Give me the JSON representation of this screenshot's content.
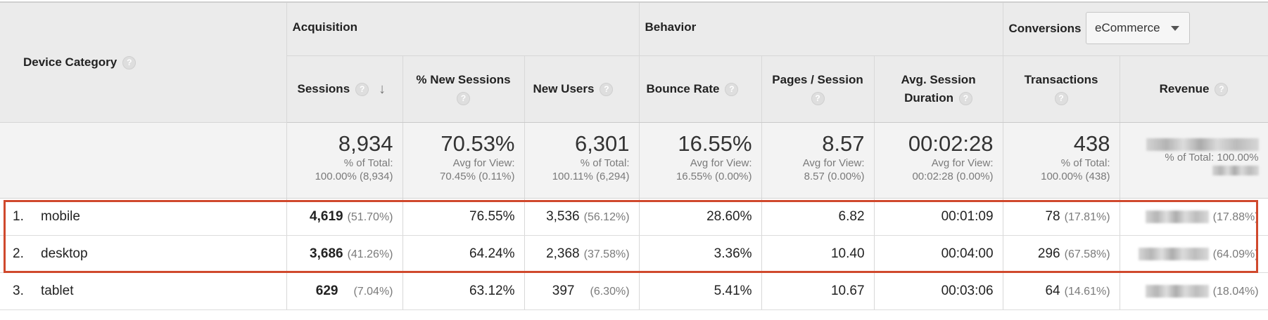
{
  "header": {
    "dimension_label": "Device Category",
    "groups": {
      "acquisition": "Acquisition",
      "behavior": "Behavior",
      "conversions": "Conversions"
    },
    "conversions_dropdown": {
      "selected": "eCommerce"
    },
    "metrics": {
      "sessions": "Sessions",
      "new_sessions_1": "% New Sessions",
      "new_users": "New Users",
      "bounce_rate": "Bounce Rate",
      "pages_session": "Pages / Session",
      "avg_duration_1": "Avg. Session",
      "avg_duration_2": "Duration",
      "transactions": "Transactions",
      "revenue": "Revenue"
    }
  },
  "summary": {
    "sessions": {
      "value": "8,934",
      "sub1": "% of Total:",
      "sub2": "100.00% (8,934)"
    },
    "new_sessions": {
      "value": "70.53%",
      "sub1": "Avg for View:",
      "sub2": "70.45% (0.11%)"
    },
    "new_users": {
      "value": "6,301",
      "sub1": "% of Total:",
      "sub2": "100.11% (6,294)"
    },
    "bounce_rate": {
      "value": "16.55%",
      "sub1": "Avg for View:",
      "sub2": "16.55% (0.00%)"
    },
    "pages_session": {
      "value": "8.57",
      "sub1": "Avg for View:",
      "sub2": "8.57 (0.00%)"
    },
    "avg_duration": {
      "value": "00:02:28",
      "sub1": "Avg for View:",
      "sub2": "00:02:28 (0.00%)"
    },
    "transactions": {
      "value": "438",
      "sub1": "% of Total:",
      "sub2": "100.00% (438)"
    },
    "revenue": {
      "sub1": "% of Total: 100.00%"
    }
  },
  "rows": [
    {
      "index": "1.",
      "name": "mobile",
      "sessions": "4,619",
      "sessions_pct": "(51.70%)",
      "new_sessions": "76.55%",
      "new_users": "3,536",
      "new_users_pct": "(56.12%)",
      "bounce_rate": "28.60%",
      "pages_session": "6.82",
      "avg_duration": "00:01:09",
      "transactions": "78",
      "transactions_pct": "(17.81%)",
      "revenue_pct": "(17.88%)"
    },
    {
      "index": "2.",
      "name": "desktop",
      "sessions": "3,686",
      "sessions_pct": "(41.26%)",
      "new_sessions": "64.24%",
      "new_users": "2,368",
      "new_users_pct": "(37.58%)",
      "bounce_rate": "3.36%",
      "pages_session": "10.40",
      "avg_duration": "00:04:00",
      "transactions": "296",
      "transactions_pct": "(67.58%)",
      "revenue_pct": "(64.09%)"
    },
    {
      "index": "3.",
      "name": "tablet",
      "sessions": "629",
      "sessions_pct": "(7.04%)",
      "new_sessions": "63.12%",
      "new_users": "397",
      "new_users_pct": "(6.30%)",
      "bounce_rate": "5.41%",
      "pages_session": "10.67",
      "avg_duration": "00:03:06",
      "transactions": "64",
      "transactions_pct": "(14.61%)",
      "revenue_pct": "(18.04%)"
    }
  ],
  "help_icon_glyph": "?",
  "sort_icon_glyph": "↓",
  "colors": {
    "highlight": "#d0492d",
    "header_bg": "#ebebeb"
  }
}
